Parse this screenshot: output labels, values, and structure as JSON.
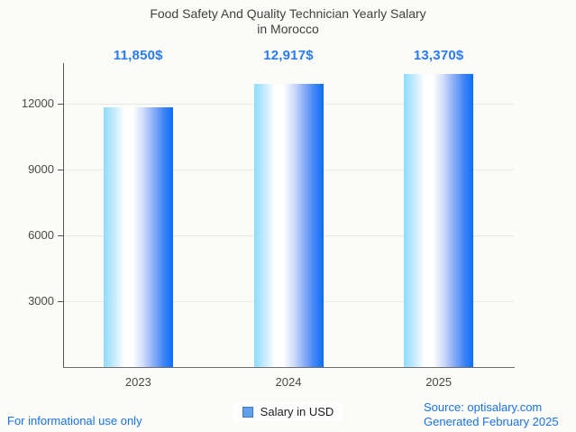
{
  "title": {
    "line1": "Food Safety And Quality Technician Yearly Salary",
    "line2": "in Morocco"
  },
  "chart_data": {
    "type": "bar",
    "title": "Food Safety And Quality Technician Yearly Salary in Morocco",
    "categories": [
      "2023",
      "2024",
      "2025"
    ],
    "series": [
      {
        "name": "Salary in USD",
        "values": [
          11850,
          12917,
          13370
        ]
      }
    ],
    "annotations": [
      "11,850$",
      "12,917$",
      "13,370$"
    ],
    "yticks": [
      3000,
      6000,
      9000,
      12000
    ],
    "ylim": [
      0,
      13850
    ],
    "xlabel": "",
    "ylabel": "",
    "grid": true,
    "legend_position": "bottom",
    "colors": {
      "bar_gradient_left": "#8edcfc",
      "bar_gradient_middle": "#ffffff",
      "bar_gradient_right": "#0b6ef8",
      "annotation_text": "#2a7af0",
      "axis_text": "#494949",
      "gridline": "#e8e8e8",
      "background": "#fbfbf8"
    }
  },
  "legend": {
    "label": "Salary in USD"
  },
  "footer": {
    "left": "For informational use only",
    "source": "Source: optisalary.com",
    "generated": "Generated February 2025"
  }
}
